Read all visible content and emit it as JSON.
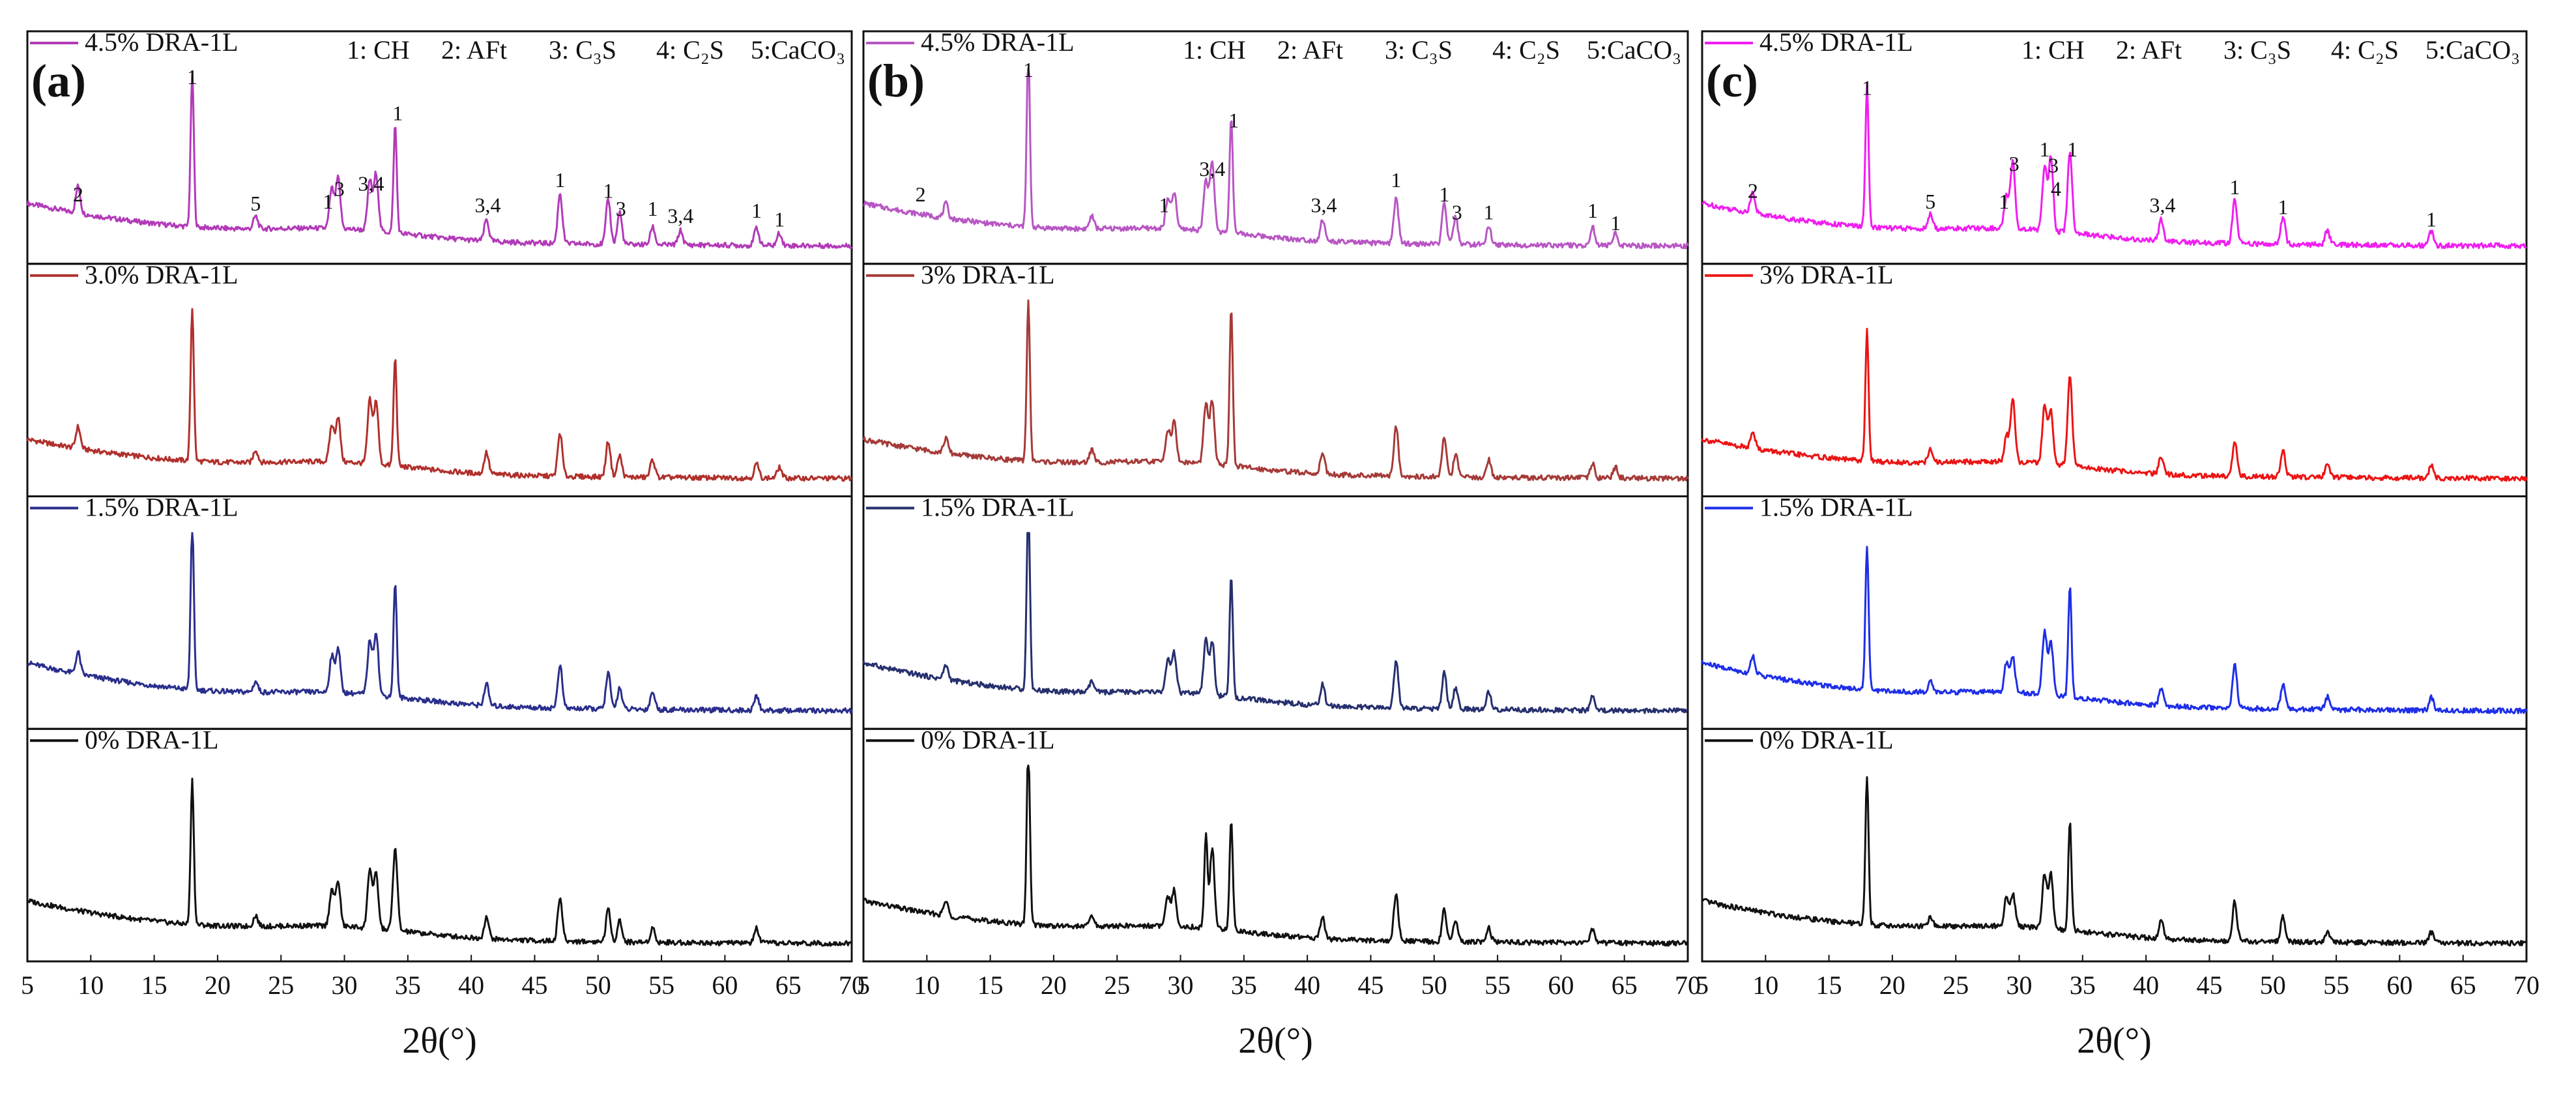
{
  "colors": {
    "magenta_a": "#B23AB8",
    "magenta_b": "#B856C4",
    "magenta_c": "#F01EF0",
    "red_a": "#B0302C",
    "red_b": "#A53A38",
    "red_c": "#EC1414",
    "blue_a": "#2A2E8C",
    "blue_b": "#26306E",
    "blue_c": "#1E2EE8",
    "black": "#111111"
  },
  "chart_data": [
    {
      "type": "line",
      "panel_label": "(a)",
      "header": [
        "1: CH",
        "2: AFt",
        "3: C₃S",
        "4: C₂S",
        "5:CaCO₃"
      ],
      "xlabel": "2θ(°)",
      "xlim": [
        5,
        70
      ],
      "x_ticks": [
        "5",
        "10",
        "15",
        "20",
        "25",
        "30",
        "35",
        "40",
        "45",
        "50",
        "55",
        "60",
        "65",
        "70"
      ],
      "series": [
        {
          "name": "4.5% DRA-1L",
          "color": "#B23AB8",
          "start": 0.3,
          "end": 0.06,
          "peaks": [
            [
              9,
              0.15
            ],
            [
              18,
              0.85
            ],
            [
              23,
              0.07
            ],
            [
              29,
              0.22
            ],
            [
              29.5,
              0.28
            ],
            [
              32,
              0.28
            ],
            [
              32.5,
              0.32
            ],
            [
              34,
              0.6
            ],
            [
              41.2,
              0.12
            ],
            [
              47,
              0.28
            ],
            [
              50.8,
              0.25
            ],
            [
              51.7,
              0.18
            ],
            [
              54.3,
              0.1
            ],
            [
              56.5,
              0.08
            ],
            [
              62.5,
              0.1
            ],
            [
              64.3,
              0.07
            ]
          ],
          "annotations": [
            [
              "2",
              9,
              0.31
            ],
            [
              "1",
              18,
              0.96
            ],
            [
              "5",
              23,
              0.26
            ],
            [
              "1",
              28.7,
              0.27
            ],
            [
              "3",
              29.6,
              0.34
            ],
            [
              "3,4",
              32.1,
              0.37
            ],
            [
              "1",
              34.2,
              0.76
            ],
            [
              "3,4",
              41.3,
              0.25
            ],
            [
              "1",
              47,
              0.39
            ],
            [
              "1",
              50.8,
              0.33
            ],
            [
              "3",
              51.8,
              0.23
            ],
            [
              "1",
              54.3,
              0.23
            ],
            [
              "3,4",
              56.5,
              0.19
            ],
            [
              "1",
              62.5,
              0.22
            ],
            [
              "1",
              64.3,
              0.17
            ]
          ]
        },
        {
          "name": "3.0% DRA-1L",
          "color": "#B0302C",
          "start": 0.28,
          "end": 0.06,
          "peaks": [
            [
              9,
              0.12
            ],
            [
              18,
              0.85
            ],
            [
              23,
              0.07
            ],
            [
              29,
              0.2
            ],
            [
              29.5,
              0.25
            ],
            [
              32,
              0.35
            ],
            [
              32.5,
              0.35
            ],
            [
              34,
              0.6
            ],
            [
              41.2,
              0.12
            ],
            [
              47,
              0.24
            ],
            [
              50.8,
              0.2
            ],
            [
              51.7,
              0.12
            ],
            [
              54.3,
              0.1
            ],
            [
              62.5,
              0.08
            ],
            [
              64.3,
              0.06
            ]
          ],
          "annotations": []
        },
        {
          "name": "1.5% DRA-1L",
          "color": "#2A2E8C",
          "start": 0.33,
          "end": 0.06,
          "peaks": [
            [
              9,
              0.12
            ],
            [
              18,
              0.93
            ],
            [
              23,
              0.06
            ],
            [
              29,
              0.2
            ],
            [
              29.5,
              0.25
            ],
            [
              32,
              0.3
            ],
            [
              32.5,
              0.35
            ],
            [
              34,
              0.64
            ],
            [
              41.2,
              0.12
            ],
            [
              47,
              0.24
            ],
            [
              50.8,
              0.2
            ],
            [
              51.7,
              0.12
            ],
            [
              54.3,
              0.1
            ],
            [
              62.5,
              0.08
            ]
          ],
          "annotations": []
        },
        {
          "name": "0% DRA-1L",
          "color": "#111111",
          "start": 0.3,
          "end": 0.06,
          "peaks": [
            [
              18,
              0.8
            ],
            [
              23,
              0.06
            ],
            [
              29,
              0.2
            ],
            [
              29.5,
              0.25
            ],
            [
              32,
              0.33
            ],
            [
              32.5,
              0.3
            ],
            [
              34,
              0.45
            ],
            [
              41.2,
              0.12
            ],
            [
              47,
              0.24
            ],
            [
              50.8,
              0.18
            ],
            [
              51.7,
              0.12
            ],
            [
              54.3,
              0.08
            ],
            [
              62.5,
              0.08
            ]
          ],
          "annotations": []
        }
      ]
    },
    {
      "type": "line",
      "panel_label": "(b)",
      "header": [
        "1: CH",
        "2: AFt",
        "3: C₃S",
        "4: C₂S",
        "5:CaCO₃"
      ],
      "xlabel": "2θ(°)",
      "xlim": [
        5,
        70
      ],
      "x_ticks": [
        "5",
        "10",
        "15",
        "20",
        "25",
        "30",
        "35",
        "40",
        "45",
        "50",
        "55",
        "60",
        "65",
        "70"
      ],
      "series": [
        {
          "name": "4.5% DRA-1L",
          "color": "#B856C4",
          "start": 0.3,
          "end": 0.06,
          "peaks": [
            [
              11.5,
              0.08
            ],
            [
              18,
              0.98
            ],
            [
              23,
              0.07
            ],
            [
              29,
              0.16
            ],
            [
              29.5,
              0.2
            ],
            [
              32,
              0.28
            ],
            [
              32.5,
              0.38
            ],
            [
              34,
              0.65
            ],
            [
              41.2,
              0.12
            ],
            [
              47,
              0.26
            ],
            [
              50.8,
              0.22
            ],
            [
              51.7,
              0.15
            ],
            [
              54.3,
              0.1
            ],
            [
              62.5,
              0.1
            ],
            [
              64.3,
              0.07
            ]
          ],
          "annotations": [
            [
              "2",
              9.5,
              0.31
            ],
            [
              "1",
              18,
              1.0
            ],
            [
              "1",
              28.7,
              0.25
            ],
            [
              "3,4",
              32.5,
              0.45
            ],
            [
              "1",
              34.2,
              0.72
            ],
            [
              "3,4",
              41.3,
              0.25
            ],
            [
              "1",
              47,
              0.39
            ],
            [
              "1",
              50.8,
              0.31
            ],
            [
              "3",
              51.8,
              0.21
            ],
            [
              "1",
              54.3,
              0.21
            ],
            [
              "1",
              62.5,
              0.22
            ],
            [
              "1",
              64.3,
              0.15
            ]
          ]
        },
        {
          "name": "3% DRA-1L",
          "color": "#A53A38",
          "start": 0.28,
          "end": 0.06,
          "peaks": [
            [
              11.5,
              0.08
            ],
            [
              18,
              0.88
            ],
            [
              23,
              0.07
            ],
            [
              29,
              0.18
            ],
            [
              29.5,
              0.22
            ],
            [
              32,
              0.33
            ],
            [
              32.5,
              0.35
            ],
            [
              34,
              0.88
            ],
            [
              41.2,
              0.12
            ],
            [
              47,
              0.28
            ],
            [
              50.8,
              0.22
            ],
            [
              51.7,
              0.12
            ],
            [
              54.3,
              0.1
            ],
            [
              62.5,
              0.08
            ],
            [
              64.3,
              0.06
            ]
          ],
          "annotations": []
        },
        {
          "name": "1.5% DRA-1L",
          "color": "#26306E",
          "start": 0.33,
          "end": 0.06,
          "peaks": [
            [
              11.5,
              0.08
            ],
            [
              18,
              1.05
            ],
            [
              23,
              0.06
            ],
            [
              29,
              0.18
            ],
            [
              29.5,
              0.22
            ],
            [
              32,
              0.3
            ],
            [
              32.5,
              0.3
            ],
            [
              34,
              0.67
            ],
            [
              41.2,
              0.12
            ],
            [
              47,
              0.26
            ],
            [
              50.8,
              0.2
            ],
            [
              51.7,
              0.12
            ],
            [
              54.3,
              0.1
            ],
            [
              62.5,
              0.08
            ]
          ],
          "annotations": []
        },
        {
          "name": "0% DRA-1L",
          "color": "#111111",
          "start": 0.3,
          "end": 0.06,
          "peaks": [
            [
              11.5,
              0.08
            ],
            [
              18,
              1.0
            ],
            [
              23,
              0.06
            ],
            [
              29,
              0.16
            ],
            [
              29.5,
              0.2
            ],
            [
              32,
              0.52
            ],
            [
              32.5,
              0.45
            ],
            [
              34,
              0.62
            ],
            [
              41.2,
              0.12
            ],
            [
              47,
              0.26
            ],
            [
              50.8,
              0.18
            ],
            [
              51.7,
              0.12
            ],
            [
              54.3,
              0.08
            ],
            [
              62.5,
              0.08
            ]
          ],
          "annotations": []
        }
      ]
    },
    {
      "type": "line",
      "panel_label": "(c)",
      "header": [
        "1: CH",
        "2: AFt",
        "3: C₃S",
        "4: C₂S",
        "5:CaCO₃"
      ],
      "xlabel": "2θ(°)",
      "xlim": [
        5,
        70
      ],
      "x_ticks": [
        "5",
        "10",
        "15",
        "20",
        "25",
        "30",
        "35",
        "40",
        "45",
        "50",
        "55",
        "60",
        "65",
        "70"
      ],
      "series": [
        {
          "name": "4.5% DRA-1L",
          "color": "#F01EF0",
          "start": 0.3,
          "end": 0.06,
          "peaks": [
            [
              9,
              0.12
            ],
            [
              18,
              0.78
            ],
            [
              23,
              0.08
            ],
            [
              29,
              0.18
            ],
            [
              29.5,
              0.38
            ],
            [
              32,
              0.35
            ],
            [
              32.5,
              0.42
            ],
            [
              34,
              0.45
            ],
            [
              41.2,
              0.12
            ],
            [
              47,
              0.25
            ],
            [
              50.8,
              0.15
            ],
            [
              54.3,
              0.08
            ],
            [
              62.5,
              0.08
            ]
          ],
          "annotations": [
            [
              "2",
              9,
              0.33
            ],
            [
              "1",
              18,
              0.9
            ],
            [
              "5",
              23,
              0.27
            ],
            [
              "1",
              28.8,
              0.27
            ],
            [
              "3",
              29.6,
              0.48
            ],
            [
              "1",
              32,
              0.56
            ],
            [
              "3",
              32.7,
              0.47
            ],
            [
              "4",
              32.9,
              0.34
            ],
            [
              "1",
              34.2,
              0.56
            ],
            [
              "3,4",
              41.3,
              0.25
            ],
            [
              "1",
              47,
              0.35
            ],
            [
              "1",
              50.8,
              0.24
            ],
            [
              "1",
              62.5,
              0.17
            ]
          ]
        },
        {
          "name": "3% DRA-1L",
          "color": "#EC1414",
          "start": 0.28,
          "end": 0.06,
          "peaks": [
            [
              9,
              0.1
            ],
            [
              18,
              0.72
            ],
            [
              23,
              0.07
            ],
            [
              29,
              0.14
            ],
            [
              29.5,
              0.34
            ],
            [
              32,
              0.33
            ],
            [
              32.5,
              0.3
            ],
            [
              34,
              0.5
            ],
            [
              41.2,
              0.1
            ],
            [
              47,
              0.2
            ],
            [
              50.8,
              0.15
            ],
            [
              54.3,
              0.07
            ],
            [
              62.5,
              0.07
            ]
          ],
          "annotations": []
        },
        {
          "name": "1.5% DRA-1L",
          "color": "#1E2EE8",
          "start": 0.33,
          "end": 0.06,
          "peaks": [
            [
              9,
              0.1
            ],
            [
              18,
              0.8
            ],
            [
              23,
              0.06
            ],
            [
              29,
              0.16
            ],
            [
              29.5,
              0.2
            ],
            [
              32,
              0.35
            ],
            [
              32.5,
              0.3
            ],
            [
              34,
              0.62
            ],
            [
              41.2,
              0.1
            ],
            [
              47,
              0.24
            ],
            [
              50.8,
              0.14
            ],
            [
              54.3,
              0.07
            ],
            [
              62.5,
              0.07
            ]
          ],
          "annotations": []
        },
        {
          "name": "0% DRA-1L",
          "color": "#111111",
          "start": 0.3,
          "end": 0.06,
          "peaks": [
            [
              18,
              0.82
            ],
            [
              23,
              0.05
            ],
            [
              29,
              0.16
            ],
            [
              29.5,
              0.18
            ],
            [
              32,
              0.3
            ],
            [
              32.5,
              0.3
            ],
            [
              34,
              0.6
            ],
            [
              41.2,
              0.1
            ],
            [
              47,
              0.22
            ],
            [
              50.8,
              0.14
            ],
            [
              54.3,
              0.06
            ],
            [
              62.5,
              0.06
            ]
          ],
          "annotations": []
        }
      ]
    }
  ]
}
